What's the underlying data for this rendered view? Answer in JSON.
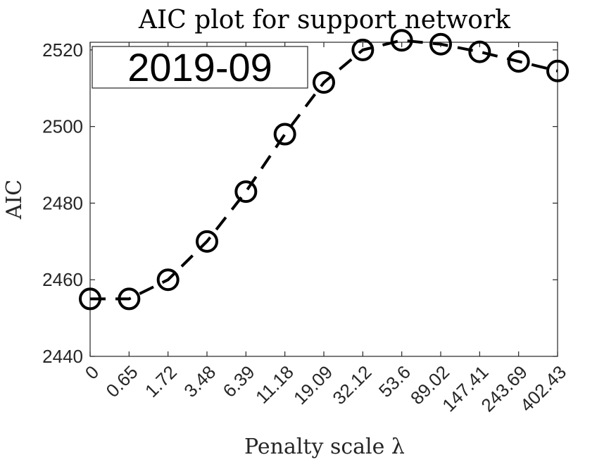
{
  "chart_data": {
    "type": "line",
    "title": "AIC plot for support network",
    "xlabel": "Penalty scale λ",
    "ylabel": "AIC",
    "annotation": "2019-09",
    "x_tick_labels": [
      "0",
      "0.65",
      "1.72",
      "3.48",
      "6.39",
      "11.18",
      "19.09",
      "32.12",
      "53.6",
      "89.02",
      "147.41",
      "243.69",
      "402.43"
    ],
    "y_ticks": [
      2440,
      2460,
      2480,
      2500,
      2520
    ],
    "ylim": [
      2440,
      2522
    ],
    "grid": false,
    "line_style": "dashed",
    "marker": "open-circle",
    "color": "#000000",
    "series": [
      {
        "values": [
          2455,
          2455,
          2460,
          2470,
          2483,
          2498,
          2511.5,
          2520,
          2522.5,
          2521.5,
          2519.5,
          2517,
          2514.5
        ]
      }
    ]
  }
}
